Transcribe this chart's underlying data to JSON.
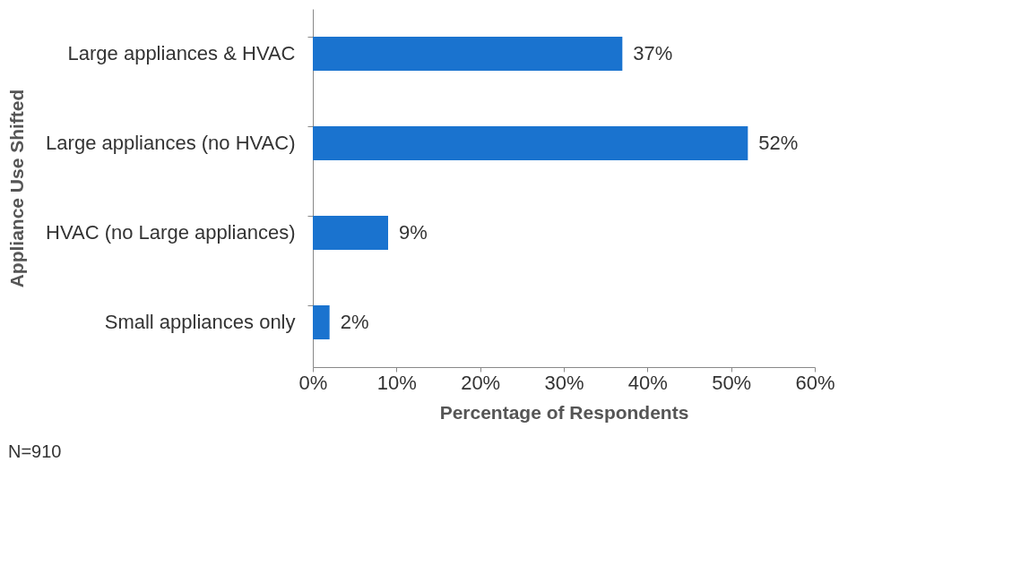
{
  "chart_data": {
    "type": "bar",
    "orientation": "horizontal",
    "xlabel": "Percentage of Respondents",
    "ylabel": "Appliance Use Shifted",
    "categories": [
      "Large appliances & HVAC",
      "Large appliances (no HVAC)",
      "HVAC (no Large appliances)",
      "Small appliances only"
    ],
    "values": [
      37,
      52,
      9,
      2
    ],
    "color": "#1a73cf",
    "value_labels": [
      "37%",
      "52%",
      "9%",
      "2%"
    ],
    "xlim": [
      0,
      60
    ],
    "xticks": [
      {
        "value": 0,
        "label": "0%"
      },
      {
        "value": 10,
        "label": "10%"
      },
      {
        "value": 20,
        "label": "20%"
      },
      {
        "value": 30,
        "label": "30%"
      },
      {
        "value": 40,
        "label": "40%"
      },
      {
        "value": 50,
        "label": "50%"
      },
      {
        "value": 60,
        "label": "60%"
      }
    ],
    "annotations": [
      "N=910"
    ]
  }
}
